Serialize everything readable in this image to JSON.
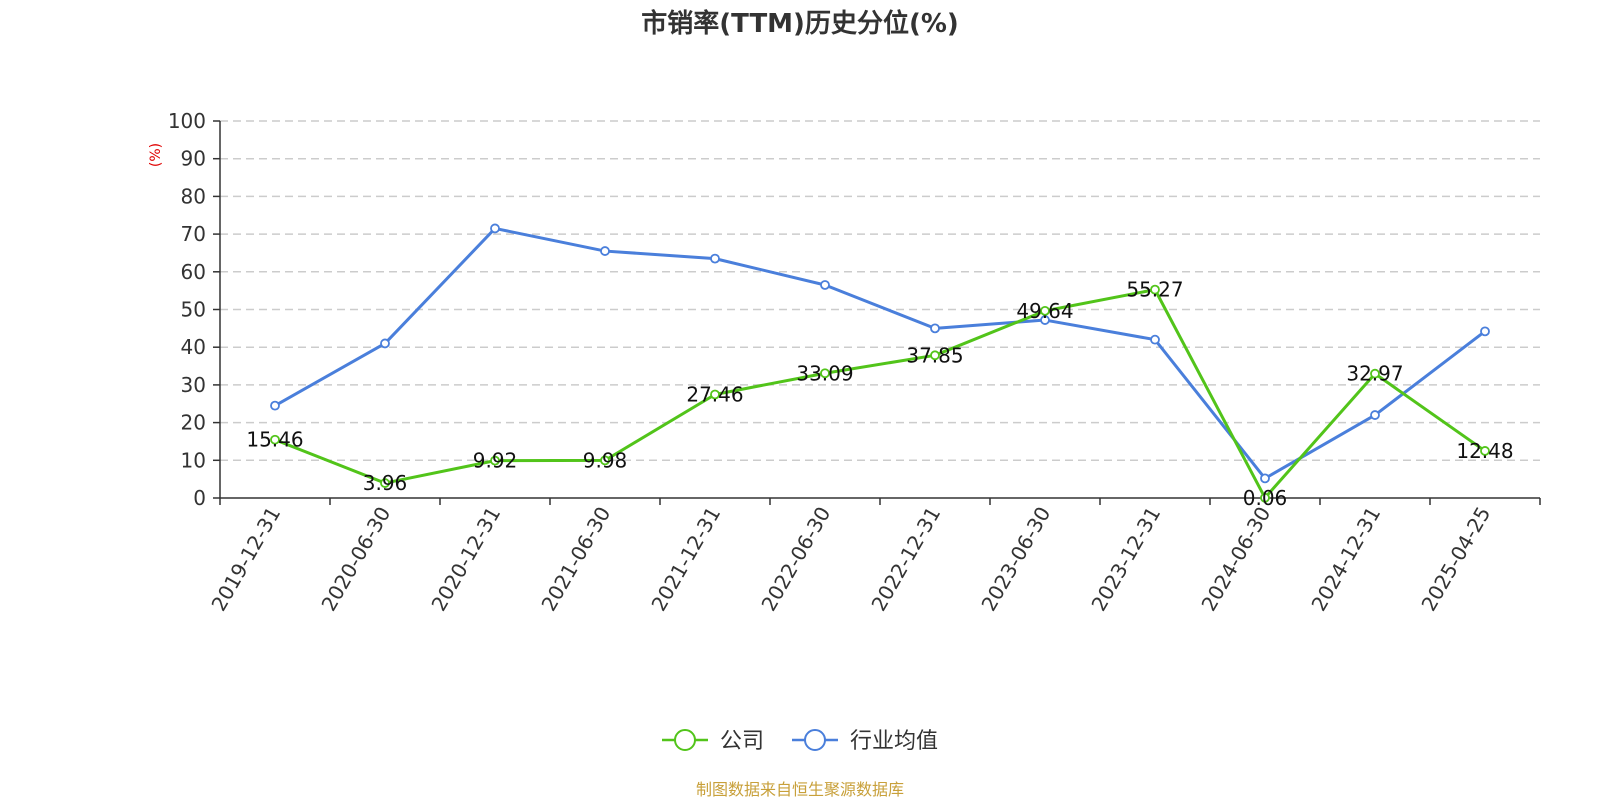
{
  "chart_data": {
    "type": "line",
    "title": "市销率(TTM)历史分位(%)",
    "ylabel": "(%)",
    "ylim": [
      0,
      100
    ],
    "yticks": [
      0,
      10,
      20,
      30,
      40,
      50,
      60,
      70,
      80,
      90,
      100
    ],
    "grid": true,
    "legend_position": "bottom-center",
    "categories": [
      "2019-12-31",
      "2020-06-30",
      "2020-12-31",
      "2021-06-30",
      "2021-12-31",
      "2022-06-30",
      "2022-12-31",
      "2023-06-30",
      "2023-12-31",
      "2024-06-30",
      "2024-12-31",
      "2025-04-25"
    ],
    "series": [
      {
        "name": "公司",
        "color": "#52c41a",
        "values": [
          15.46,
          3.96,
          9.92,
          9.98,
          27.46,
          33.09,
          37.85,
          49.64,
          55.27,
          0.06,
          32.97,
          12.48
        ],
        "labels": [
          "15.46",
          "3.96",
          "9.92",
          "9.98",
          "27.46",
          "33.09",
          "37.85",
          "49.64",
          "55.27",
          "0.06",
          "32.97",
          "12.48"
        ]
      },
      {
        "name": "行业均值",
        "color": "#4a7fdb",
        "values": [
          24.5,
          41,
          71.5,
          65.5,
          63.5,
          56.5,
          45,
          47.2,
          42,
          5.2,
          22,
          44.2
        ]
      }
    ]
  },
  "colors": {
    "ylabel": "#e00000",
    "source": "#c8a03a",
    "axis": "#333333",
    "grid": "#cccccc"
  },
  "source_text": "制图数据来自恒生聚源数据库"
}
